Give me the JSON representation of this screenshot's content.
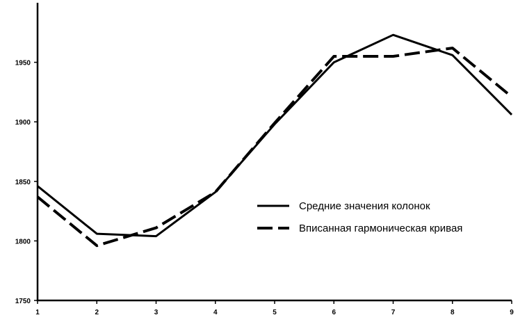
{
  "chart_data": {
    "type": "line",
    "x": [
      1,
      2,
      3,
      4,
      5,
      6,
      7,
      8,
      9
    ],
    "series": [
      {
        "name": "Средние значения колонок",
        "style": "solid",
        "values": [
          1846,
          1806,
          1804,
          1841,
          1898,
          1950,
          1973,
          1956,
          1906
        ]
      },
      {
        "name": "Вписанная гармоническая кривая",
        "style": "dashed",
        "values": [
          1837,
          1796,
          1811,
          1841,
          1899,
          1955,
          1955,
          1962,
          1921
        ]
      }
    ],
    "xlim": [
      1,
      9
    ],
    "ylim": [
      1750,
      2000
    ],
    "x_ticks": [
      1,
      2,
      3,
      4,
      5,
      6,
      7,
      8,
      9
    ],
    "y_ticks": [
      1750,
      1800,
      1850,
      1900,
      1950
    ],
    "grid": false,
    "legend_position": "center-right",
    "colors": {
      "line": "#000000",
      "background": "#ffffff"
    }
  }
}
